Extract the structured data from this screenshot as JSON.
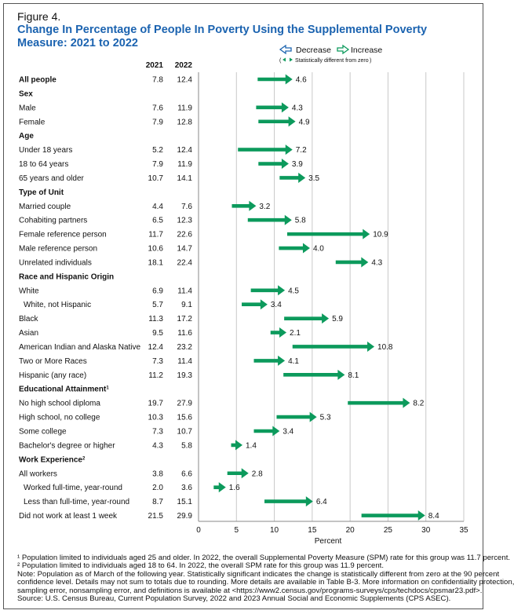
{
  "figure_label": "Figure 4.",
  "title": "Change In Percentage of People In Poverty Using the Supplemental Poverty Measure: 2021 to 2022",
  "legend": {
    "decrease": "Decrease",
    "increase": "Increase",
    "significance_note": "Statistically different from zero"
  },
  "colors": {
    "arrow": "#0c9a5c",
    "grid": "#c8c8c8",
    "title": "#1b63b0",
    "text": "#111111"
  },
  "footnotes": [
    "¹ Population limited to individuals aged 25 and older. In 2022, the overall Supplemental Poverty Measure (SPM) rate for this group was 11.7 percent.",
    "² Population limited to individuals aged 18 to 64. In 2022, the overall SPM rate for this group was 11.9 percent.",
    "Note: Population as of March of the following year. Statistically significant indicates the change is statistically different from zero at the 90 percent",
    "confidence level. Details may not sum to totals due to rounding. More details are available in Table B-3. More information on confidentiality protection,",
    "sampling error, nonsampling error, and definitions is available at <https://www2.census.gov/programs-surveys/cps/techdocs/cpsmar23.pdf>.",
    "Source: U.S. Census Bureau, Current Population Survey, 2022 and 2023 Annual Social and Economic Supplements (CPS ASEC)."
  ],
  "chart_data": {
    "type": "arrow",
    "title": "Change In Percentage of People In Poverty Using the Supplemental Poverty Measure: 2021 to 2022",
    "xlabel": "Percent",
    "xlim": [
      0,
      35
    ],
    "xticks": [
      0,
      5,
      10,
      15,
      20,
      25,
      30,
      35
    ],
    "grid": true,
    "legend_position": "top-right",
    "column_headers": [
      "2021",
      "2022"
    ],
    "rows": [
      {
        "kind": "row",
        "label": "All people",
        "bold": true,
        "v2021": 7.8,
        "v2022": 12.4,
        "change": "4.6"
      },
      {
        "kind": "header",
        "label": "Sex"
      },
      {
        "kind": "row",
        "label": "Male",
        "v2021": 7.6,
        "v2022": 11.9,
        "change": "4.3"
      },
      {
        "kind": "row",
        "label": "Female",
        "v2021": 7.9,
        "v2022": 12.8,
        "change": "4.9"
      },
      {
        "kind": "header",
        "label": "Age"
      },
      {
        "kind": "row",
        "label": "Under 18 years",
        "v2021": 5.2,
        "v2022": 12.4,
        "change": "7.2"
      },
      {
        "kind": "row",
        "label": "18 to 64 years",
        "v2021": 7.9,
        "v2022": 11.9,
        "change": "3.9"
      },
      {
        "kind": "row",
        "label": "65 years and older",
        "v2021": 10.7,
        "v2022": 14.1,
        "change": "3.5"
      },
      {
        "kind": "header",
        "label": "Type of Unit"
      },
      {
        "kind": "row",
        "label": "Married couple",
        "v2021": 4.4,
        "v2022": 7.6,
        "change": "3.2"
      },
      {
        "kind": "row",
        "label": "Cohabiting partners",
        "v2021": 6.5,
        "v2022": 12.3,
        "change": "5.8"
      },
      {
        "kind": "row",
        "label": "Female reference person",
        "v2021": 11.7,
        "v2022": 22.6,
        "change": "10.9"
      },
      {
        "kind": "row",
        "label": "Male reference person",
        "v2021": 10.6,
        "v2022": 14.7,
        "change": "4.0"
      },
      {
        "kind": "row",
        "label": "Unrelated individuals",
        "v2021": 18.1,
        "v2022": 22.4,
        "change": "4.3"
      },
      {
        "kind": "header",
        "label": "Race and Hispanic Origin"
      },
      {
        "kind": "row",
        "label": "White",
        "v2021": 6.9,
        "v2022": 11.4,
        "change": "4.5"
      },
      {
        "kind": "row",
        "label": "White, not Hispanic",
        "indent": true,
        "v2021": 5.7,
        "v2022": 9.1,
        "change": "3.4"
      },
      {
        "kind": "row",
        "label": "Black",
        "v2021": 11.3,
        "v2022": 17.2,
        "change": "5.9"
      },
      {
        "kind": "row",
        "label": "Asian",
        "v2021": 9.5,
        "v2022": 11.6,
        "change": "2.1"
      },
      {
        "kind": "row",
        "label": "American Indian and Alaska Native",
        "v2021": 12.4,
        "v2022": 23.2,
        "change": "10.8"
      },
      {
        "kind": "row",
        "label": "Two or More Races",
        "v2021": 7.3,
        "v2022": 11.4,
        "change": "4.1"
      },
      {
        "kind": "row",
        "label": "Hispanic (any race)",
        "v2021": 11.2,
        "v2022": 19.3,
        "change": "8.1"
      },
      {
        "kind": "header",
        "label": "Educational Attainment",
        "sup": "1"
      },
      {
        "kind": "row",
        "label": "No high school diploma",
        "v2021": 19.7,
        "v2022": 27.9,
        "change": "8.2"
      },
      {
        "kind": "row",
        "label": "High school, no college",
        "v2021": 10.3,
        "v2022": 15.6,
        "change": "5.3"
      },
      {
        "kind": "row",
        "label": "Some college",
        "v2021": 7.3,
        "v2022": 10.7,
        "change": "3.4"
      },
      {
        "kind": "row",
        "label": "Bachelor's degree or higher",
        "v2021": 4.3,
        "v2022": 5.8,
        "change": "1.4"
      },
      {
        "kind": "header",
        "label": "Work Experience",
        "sup": "2"
      },
      {
        "kind": "row",
        "label": "All workers",
        "v2021": 3.8,
        "v2022": 6.6,
        "change": "2.8"
      },
      {
        "kind": "row",
        "label": "Worked full-time, year-round",
        "indent": true,
        "v2021": 2.0,
        "v2022": 3.6,
        "change": "1.6"
      },
      {
        "kind": "row",
        "label": "Less than full-time, year-round",
        "indent": true,
        "v2021": 8.7,
        "v2022": 15.1,
        "change": "6.4"
      },
      {
        "kind": "row",
        "label": "Did not work at least 1 week",
        "v2021": 21.5,
        "v2022": 29.9,
        "change": "8.4"
      }
    ]
  }
}
